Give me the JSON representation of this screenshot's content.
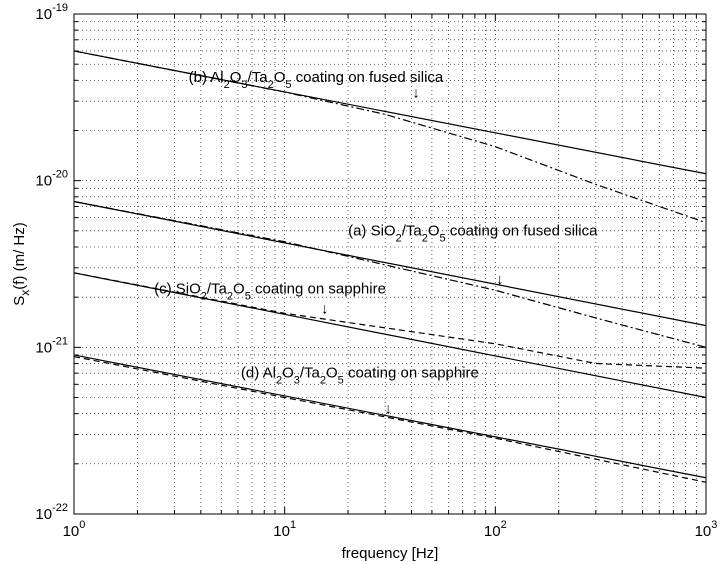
{
  "chart_data": {
    "type": "line",
    "x_scale": "log",
    "y_scale": "log",
    "xlim": [
      1,
      1000
    ],
    "ylim": [
      1e-22,
      1e-19
    ],
    "grid": true,
    "xlabel": "frequency [Hz]",
    "ylabel": "S_x(f) (m/ Hz)",
    "x_ticks": [
      {
        "value": 1,
        "base": "10",
        "exp": "0"
      },
      {
        "value": 10,
        "base": "10",
        "exp": "1"
      },
      {
        "value": 100,
        "base": "10",
        "exp": "2"
      },
      {
        "value": 1000,
        "base": "10",
        "exp": "3"
      }
    ],
    "y_ticks": [
      {
        "value": 1e-22,
        "base": "10",
        "exp": "-22"
      },
      {
        "value": 1e-21,
        "base": "10",
        "exp": "-21"
      },
      {
        "value": 1e-20,
        "base": "10",
        "exp": "-20"
      },
      {
        "value": 1e-19,
        "base": "10",
        "exp": "-19"
      }
    ],
    "series": [
      {
        "style": "solid",
        "x": [
          1,
          1000
        ],
        "y": [
          6e-20,
          1.1e-20
        ]
      },
      {
        "style": "dashdot",
        "x": [
          1,
          10,
          30,
          100,
          300,
          1000
        ],
        "y": [
          6e-20,
          3.4e-20,
          2.5e-20,
          1.6e-20,
          9.5e-21,
          5.6e-21
        ]
      },
      {
        "style": "solid",
        "x": [
          1,
          1000
        ],
        "y": [
          7.5e-21,
          1.35e-21
        ]
      },
      {
        "style": "dashdot",
        "x": [
          1,
          10,
          100,
          300,
          1000
        ],
        "y": [
          7.5e-21,
          4.3e-21,
          2.2e-21,
          1.5e-21,
          1e-21
        ]
      },
      {
        "style": "solid",
        "x": [
          1,
          1000
        ],
        "y": [
          2.8e-21,
          5e-22
        ]
      },
      {
        "style": "dashed",
        "x": [
          1,
          10,
          100,
          300,
          1000
        ],
        "y": [
          2.8e-21,
          1.6e-21,
          1.05e-21,
          8e-22,
          7.5e-22
        ]
      },
      {
        "style": "solid",
        "x": [
          1,
          1000
        ],
        "y": [
          9e-22,
          1.65e-22
        ]
      },
      {
        "style": "dashed",
        "x": [
          1,
          10,
          100,
          1000
        ],
        "y": [
          8.8e-22,
          5e-22,
          2.85e-22,
          1.55e-22
        ]
      }
    ],
    "annotations": [
      {
        "parts": [
          [
            "(b) Al",
            0
          ],
          [
            "2",
            -1
          ],
          [
            "O",
            0
          ],
          [
            "3",
            -1
          ],
          [
            "/Ta",
            0
          ],
          [
            "2",
            -1
          ],
          [
            "O",
            0
          ],
          [
            "5",
            -1
          ],
          [
            " coating on fused silica",
            0
          ]
        ],
        "x": 3.5,
        "y": 3.9e-20,
        "arrow_x": 42,
        "arrow_y": 3.15e-20
      },
      {
        "parts": [
          [
            "(a) SiO",
            0
          ],
          [
            "2",
            -1
          ],
          [
            "/Ta",
            0
          ],
          [
            "2",
            -1
          ],
          [
            "O",
            0
          ],
          [
            "5",
            -1
          ],
          [
            " coating on fused silica",
            0
          ]
        ],
        "x": 20,
        "y": 4.7e-21,
        "arrow_x": 105,
        "arrow_y": 2.4e-21
      },
      {
        "parts": [
          [
            "(c) SiO",
            0
          ],
          [
            "2",
            -1
          ],
          [
            "/Ta",
            0
          ],
          [
            "2",
            -1
          ],
          [
            "O",
            0
          ],
          [
            "5",
            -1
          ],
          [
            " coating on sapphire",
            0
          ]
        ],
        "x": 2.4,
        "y": 2.1e-21,
        "arrow_x": 15.5,
        "arrow_y": 1.6e-21
      },
      {
        "parts": [
          [
            "(d) Al",
            0
          ],
          [
            "2",
            -1
          ],
          [
            "O",
            0
          ],
          [
            "3",
            -1
          ],
          [
            "/Ta",
            0
          ],
          [
            "2",
            -1
          ],
          [
            "O",
            0
          ],
          [
            "5",
            -1
          ],
          [
            " coating on sapphire",
            0
          ]
        ],
        "x": 6.2,
        "y": 6.6e-22,
        "arrow_x": 31,
        "arrow_y": 4e-22
      }
    ],
    "arrow_glyph": "↓"
  }
}
